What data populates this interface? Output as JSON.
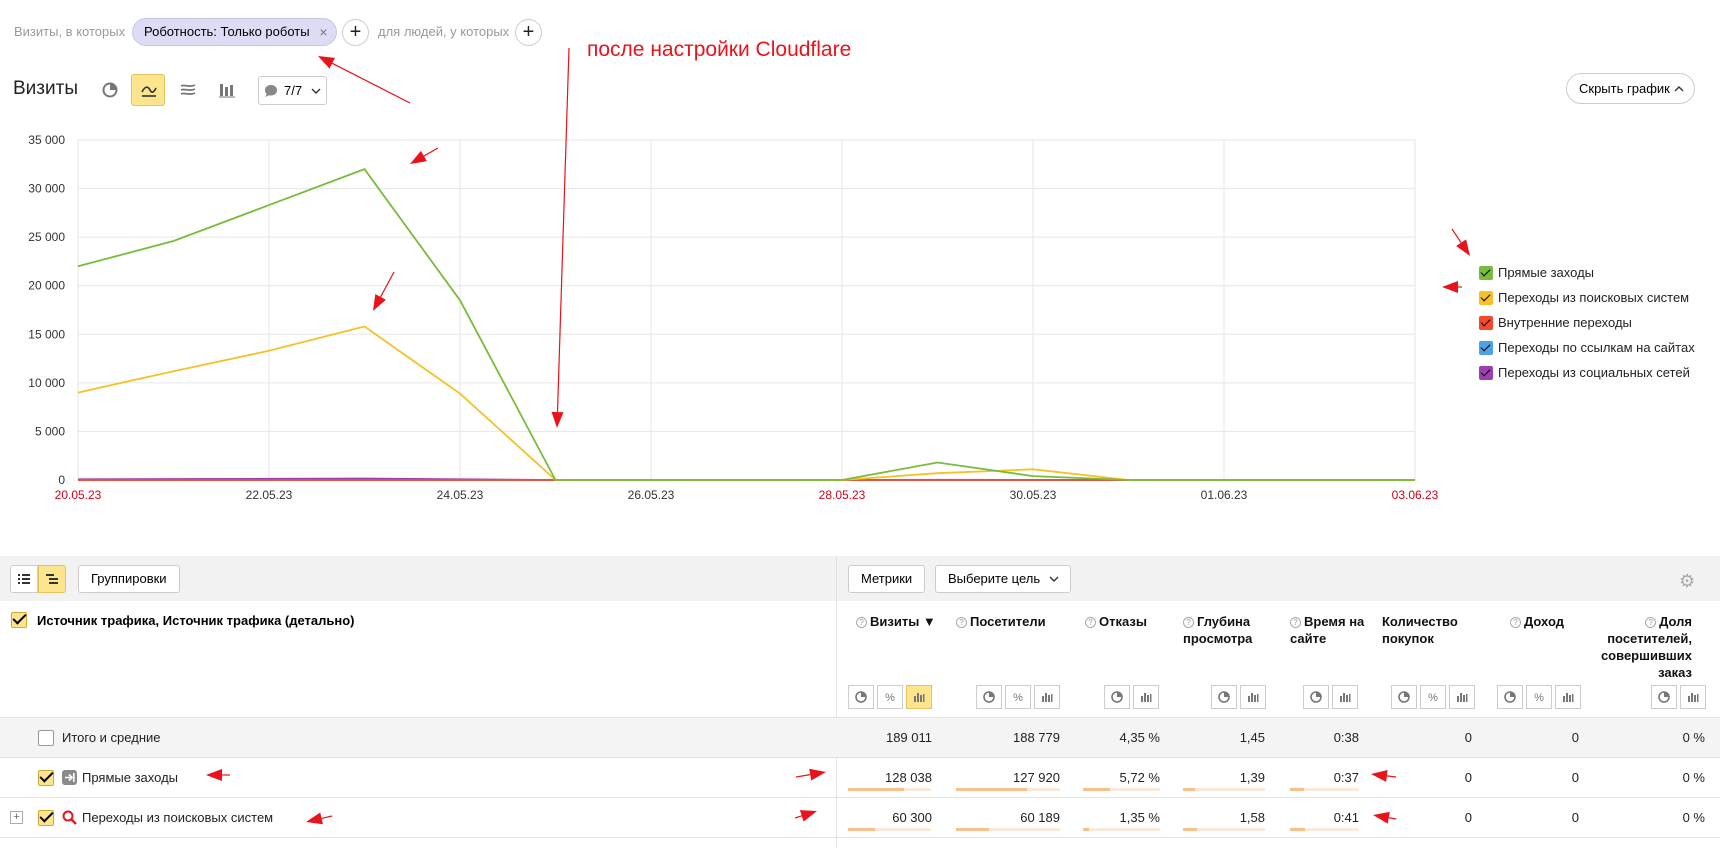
{
  "filters": {
    "prefix": "Визиты, в которых",
    "chip": "Роботность: Только роботы",
    "chip_close": "×",
    "add": "+",
    "people": "для людей, у которых"
  },
  "header": {
    "title": "Визиты",
    "annotations": "7/7",
    "hide_chart": "Скрыть график"
  },
  "annotation_note": "после настройки Cloudflare",
  "chart_data": {
    "type": "line",
    "x": [
      "20.05.23",
      "21.05.23",
      "22.05.23",
      "23.05.23",
      "24.05.23",
      "25.05.23",
      "26.05.23",
      "27.05.23",
      "28.05.23",
      "29.05.23",
      "30.05.23",
      "31.05.23",
      "01.06.23",
      "02.06.23",
      "03.06.23"
    ],
    "xticks": [
      "20.05.23",
      "22.05.23",
      "24.05.23",
      "26.05.23",
      "28.05.23",
      "30.05.23",
      "01.06.23",
      "03.06.23"
    ],
    "xticks_red": [
      "20.05.23",
      "28.05.23",
      "03.06.23"
    ],
    "yticks": [
      "0",
      "5 000",
      "10 000",
      "15 000",
      "20 000",
      "25 000",
      "30 000",
      "35 000"
    ],
    "ylim": [
      0,
      35000
    ],
    "grid": true,
    "series": [
      {
        "name": "Прямые заходы",
        "color": "#79bb3c",
        "values": [
          22000,
          24600,
          28300,
          32000,
          18500,
          0,
          0,
          0,
          0,
          1800,
          400,
          0,
          0,
          0,
          0
        ]
      },
      {
        "name": "Переходы из поисковых систем",
        "color": "#f6c026",
        "values": [
          9000,
          11200,
          13300,
          15800,
          8900,
          0,
          0,
          0,
          0,
          700,
          1100,
          0,
          0,
          0,
          0
        ]
      },
      {
        "name": "Внутренние переходы",
        "color": "#f24a2b",
        "values": [
          0,
          0,
          0,
          0,
          0,
          0,
          0,
          0,
          0,
          0,
          0,
          0,
          0,
          0,
          0
        ]
      },
      {
        "name": "Переходы по ссылкам на сайтах",
        "color": "#4aa3e6",
        "values": [
          0,
          0,
          0,
          0,
          0,
          0,
          0,
          0,
          0,
          0,
          0,
          0,
          0,
          0,
          0
        ]
      },
      {
        "name": "Переходы из социальных сетей",
        "color": "#9b3fb3",
        "values": [
          80,
          100,
          120,
          150,
          80,
          0,
          0,
          0,
          0,
          20,
          10,
          0,
          0,
          0,
          0
        ]
      }
    ]
  },
  "table_toolbar": {
    "groupings": "Группировки",
    "metrics": "Метрики",
    "goal": "Выберите цель"
  },
  "table": {
    "dimension": "Источник трафика, Источник трафика (детально)",
    "columns": [
      {
        "label": "Визиты ▼"
      },
      {
        "label": "Посетители"
      },
      {
        "label": "Отказы"
      },
      {
        "label": "Глубина просмотра"
      },
      {
        "label": "Время на сайте"
      },
      {
        "label": "Количество покупок"
      },
      {
        "label": "Доход"
      },
      {
        "label": "Доля посетителей, совершивших заказ"
      }
    ],
    "total": {
      "label": "Итого и средние",
      "values": [
        "189 011",
        "188 779",
        "4,35 %",
        "1,45",
        "0:38",
        "0",
        "0",
        "0 %"
      ]
    },
    "rows": [
      {
        "label": "Прямые заходы",
        "values": [
          "128 038",
          "127 920",
          "5,72 %",
          "1,39",
          "0:37",
          "0",
          "0",
          "0 %"
        ],
        "bars": [
          0.68,
          0.68,
          0.35,
          0.15,
          0.2
        ]
      },
      {
        "label": "Переходы из поисковых систем",
        "values": [
          "60 300",
          "60 189",
          "1,35 %",
          "1,58",
          "0:41",
          "0",
          "0",
          "0 %"
        ],
        "bars": [
          0.32,
          0.32,
          0.08,
          0.17,
          0.22
        ]
      }
    ]
  }
}
